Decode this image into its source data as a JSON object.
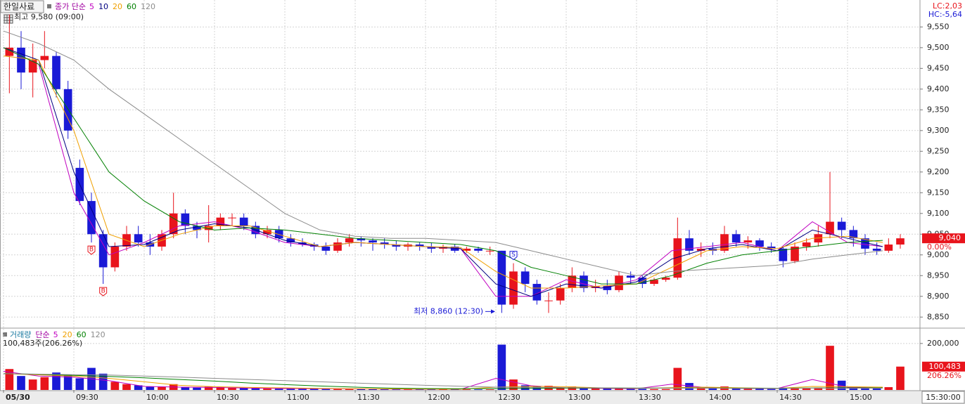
{
  "chart_data": [
    {
      "type": "candlestick",
      "title": "한일사료",
      "legend_label": "종가 단순",
      "x": [
        "09:00",
        "09:05",
        "09:10",
        "09:15",
        "09:20",
        "09:25",
        "09:30",
        "09:35",
        "09:40",
        "09:45",
        "09:50",
        "09:55",
        "10:00",
        "10:05",
        "10:10",
        "10:15",
        "10:20",
        "10:25",
        "10:30",
        "10:35",
        "10:40",
        "10:45",
        "10:50",
        "10:55",
        "11:00",
        "11:05",
        "11:10",
        "11:15",
        "11:20",
        "11:25",
        "11:30",
        "11:35",
        "11:40",
        "11:45",
        "11:50",
        "11:55",
        "12:00",
        "12:05",
        "12:10",
        "12:15",
        "12:20",
        "12:25",
        "12:30",
        "12:35",
        "12:40",
        "12:45",
        "12:50",
        "12:55",
        "13:00",
        "13:05",
        "13:10",
        "13:15",
        "13:20",
        "13:25",
        "13:30",
        "13:35",
        "13:40",
        "13:45",
        "13:50",
        "13:55",
        "14:00",
        "14:05",
        "14:10",
        "14:15",
        "14:20",
        "14:25",
        "14:30",
        "14:35",
        "14:40",
        "14:45",
        "14:50",
        "14:55",
        "15:00",
        "15:05",
        "15:10",
        "15:15",
        "15:20"
      ],
      "open": [
        9480,
        9500,
        9440,
        9470,
        9480,
        9400,
        9210,
        9130,
        9050,
        8970,
        9020,
        9050,
        9030,
        9020,
        9050,
        9100,
        9070,
        9060,
        9070,
        9090,
        9090,
        9070,
        9050,
        9060,
        9040,
        9030,
        9025,
        9020,
        9010,
        9030,
        9040,
        9035,
        9030,
        9025,
        9020,
        9025,
        9020,
        9015,
        9020,
        9010,
        9015,
        9010,
        9010,
        8880,
        8960,
        8930,
        8890,
        8890,
        8920,
        8950,
        8920,
        8925,
        8915,
        8950,
        8945,
        8930,
        8940,
        8945,
        9040,
        9010,
        9015,
        9010,
        9050,
        9030,
        9035,
        9020,
        9015,
        8985,
        9020,
        9030,
        9050,
        9080,
        9060,
        9040,
        9015,
        9010,
        9025
      ],
      "high": [
        9580,
        9540,
        9510,
        9540,
        9490,
        9420,
        9230,
        9150,
        9060,
        9030,
        9070,
        9070,
        9050,
        9060,
        9150,
        9110,
        9080,
        9120,
        9100,
        9100,
        9100,
        9080,
        9070,
        9070,
        9050,
        9040,
        9030,
        9030,
        9040,
        9050,
        9045,
        9040,
        9040,
        9035,
        9030,
        9030,
        9030,
        9025,
        9025,
        9020,
        9020,
        9020,
        9010,
        8980,
        8970,
        8940,
        8910,
        8930,
        8970,
        8960,
        8940,
        8940,
        8960,
        8960,
        8950,
        8945,
        8950,
        9090,
        9060,
        9030,
        9030,
        9070,
        9060,
        9045,
        9040,
        9030,
        9020,
        9030,
        9040,
        9070,
        9200,
        9090,
        9070,
        9050,
        9030,
        9040,
        9050
      ],
      "low": [
        9390,
        9400,
        9380,
        9450,
        9380,
        9280,
        9120,
        9030,
        8930,
        8960,
        9010,
        9020,
        9000,
        9010,
        9040,
        9050,
        9040,
        9030,
        9060,
        9070,
        9060,
        9040,
        9040,
        9030,
        9020,
        9020,
        9010,
        9000,
        9005,
        9020,
        9020,
        9010,
        9015,
        9010,
        9010,
        9010,
        9005,
        9005,
        9005,
        9005,
        9005,
        9000,
        8860,
        8870,
        8910,
        8880,
        8860,
        8880,
        8910,
        8910,
        8910,
        8905,
        8910,
        8930,
        8920,
        8925,
        8935,
        8940,
        9000,
        8995,
        9000,
        9005,
        9020,
        9015,
        9010,
        9005,
        8970,
        8980,
        9010,
        9020,
        9040,
        9040,
        9020,
        9000,
        9000,
        9005,
        9015
      ],
      "close": [
        9500,
        9440,
        9470,
        9480,
        9400,
        9300,
        9130,
        9050,
        8970,
        9020,
        9050,
        9030,
        9020,
        9050,
        9100,
        9070,
        9060,
        9070,
        9090,
        9090,
        9070,
        9050,
        9060,
        9040,
        9030,
        9025,
        9020,
        9010,
        9030,
        9040,
        9035,
        9030,
        9025,
        9020,
        9025,
        9020,
        9015,
        9020,
        9010,
        9015,
        9010,
        9010,
        8880,
        8960,
        8930,
        8890,
        8890,
        8920,
        8950,
        8920,
        8925,
        8915,
        8950,
        8945,
        8930,
        8940,
        8945,
        9040,
        9010,
        9015,
        9010,
        9050,
        9030,
        9035,
        9020,
        9015,
        8985,
        9020,
        9030,
        9050,
        9080,
        9060,
        9040,
        9015,
        9010,
        9025,
        9040
      ],
      "up_color": "#e8141c",
      "down_color": "#1a1ad6",
      "xlim": [
        "09:00",
        "15:30"
      ],
      "xticks": [
        {
          "value": "09:00",
          "label": "05/30"
        },
        "09:30",
        "10:00",
        "10:30",
        "11:00",
        "11:30",
        "12:00",
        "12:30",
        "13:00",
        "13:30",
        "14:00",
        "14:30",
        "15:00"
      ],
      "ylim": [
        8825,
        9615
      ],
      "yticks": [
        {
          "value": 8850,
          "label": "8,850"
        },
        {
          "value": 8900,
          "label": "8,900"
        },
        {
          "value": 8950,
          "label": "8,950"
        },
        {
          "value": 9000,
          "label": "9,000"
        },
        {
          "value": 9050,
          "label": "9,050"
        },
        {
          "value": 9100,
          "label": "9,100"
        },
        {
          "value": 9150,
          "label": "9,150"
        },
        {
          "value": 9200,
          "label": "9,200"
        },
        {
          "value": 9250,
          "label": "9,250"
        },
        {
          "value": 9300,
          "label": "9,300"
        },
        {
          "value": 9350,
          "label": "9,350"
        },
        {
          "value": 9400,
          "label": "9,400"
        },
        {
          "value": 9450,
          "label": "9,450"
        },
        {
          "value": 9500,
          "label": "9,500"
        },
        {
          "value": 9550,
          "label": "9,550"
        }
      ],
      "grid": true,
      "moving_averages": {
        "x": [
          "09:00",
          "09:15",
          "09:30",
          "09:45",
          "10:00",
          "10:15",
          "10:30",
          "10:45",
          "11:00",
          "11:15",
          "11:30",
          "11:45",
          "12:00",
          "12:15",
          "12:30",
          "12:45",
          "13:00",
          "13:15",
          "13:30",
          "13:45",
          "14:00",
          "14:15",
          "14:30",
          "14:45",
          "15:00",
          "15:15"
        ],
        "series": [
          {
            "name": "5",
            "color": "#c000c0",
            "values": [
              9500,
              9460,
              9150,
              9000,
              9030,
              9070,
              9080,
              9060,
              9030,
              9020,
              9030,
              9025,
              9020,
              9015,
              8900,
              8900,
              8940,
              8920,
              8940,
              9010,
              9020,
              9030,
              9010,
              9080,
              9030,
              9020
            ]
          },
          {
            "name": "10",
            "color": "#000080",
            "values": [
              9500,
              9470,
              9200,
              9020,
              9025,
              9060,
              9075,
              9065,
              9035,
              9020,
              9030,
              9025,
              9020,
              9015,
              8930,
              8900,
              8930,
              8920,
              8935,
              8990,
              9015,
              9025,
              9010,
              9060,
              9040,
              9020
            ]
          },
          {
            "name": "20",
            "color": "#f0a000",
            "values": [
              9480,
              9470,
              9300,
              9050,
              9020,
              9050,
              9070,
              9070,
              9045,
              9020,
              9030,
              9025,
              9020,
              9018,
              8960,
              8920,
              8920,
              8925,
              8930,
              8970,
              9010,
              9020,
              9015,
              9040,
              9045,
              9030
            ]
          },
          {
            "name": "60",
            "color": "#008000",
            "values": [
              9500,
              9460,
              9330,
              9200,
              9130,
              9080,
              9060,
              9065,
              9060,
              9050,
              9040,
              9035,
              9030,
              9025,
              9010,
              8970,
              8950,
              8930,
              8930,
              8950,
              8980,
              9000,
              9010,
              9020,
              9030,
              9035
            ]
          },
          {
            "name": "120",
            "color": "#8c8c8c",
            "values": [
              9540,
              9510,
              9470,
              9400,
              9340,
              9280,
              9220,
              9160,
              9100,
              9060,
              9045,
              9040,
              9040,
              9035,
              9030,
              9010,
              8990,
              8970,
              8950,
              8960,
              8965,
              8970,
              8975,
              8990,
              9000,
              9010
            ]
          }
        ]
      },
      "signals": [
        {
          "x": "09:35",
          "label": "B",
          "position": "below",
          "color": "#e8141c"
        },
        {
          "x": "09:40",
          "label": "B",
          "position": "below",
          "color": "#e8141c"
        },
        {
          "x": "12:35",
          "label": "S",
          "position": "above",
          "color": "#1a1ad6"
        }
      ],
      "high_annotation": {
        "x": "09:00",
        "value": 9580,
        "label": "최고 9,580 (09:00)"
      },
      "low_annotation": {
        "x": "12:30",
        "value": 8860,
        "label": "최저 8,860 (12:30)"
      },
      "lc_label": "LC:2,03",
      "hc_label": "HC:-5,64",
      "current_price": {
        "value": 9040,
        "label": "9,040"
      },
      "change_label": "0.00%",
      "time_label": "15:30:00"
    },
    {
      "type": "bar",
      "title": "거래량",
      "legend_label": "단순",
      "values": [
        90000,
        60000,
        45000,
        55000,
        75000,
        65000,
        50000,
        95000,
        70000,
        35000,
        25000,
        20000,
        15000,
        14000,
        25000,
        12000,
        10000,
        14000,
        12000,
        9000,
        8000,
        9000,
        7000,
        6000,
        6000,
        5000,
        5000,
        4500,
        6000,
        5000,
        4000,
        4000,
        3500,
        3500,
        3000,
        3000,
        3000,
        3000,
        2500,
        2500,
        2500,
        2500,
        195000,
        45000,
        20000,
        15000,
        18000,
        10000,
        15000,
        9000,
        7000,
        6000,
        8000,
        6000,
        5000,
        4000,
        4000,
        95000,
        30000,
        10000,
        8000,
        15000,
        8000,
        6000,
        5000,
        4000,
        10000,
        8000,
        6000,
        10000,
        190000,
        40000,
        15000,
        10000,
        8000,
        12000,
        100483
      ],
      "ylim": [
        0,
        263000
      ],
      "yticks": [
        {
          "value": 200000,
          "label": "200,000"
        }
      ],
      "grid": true,
      "moving_averages": [
        {
          "name": "5",
          "color": "#c000c0",
          "values": [
            80000,
            60000,
            55000,
            40000,
            15000,
            12000,
            11000,
            8000,
            6000,
            5000,
            4500,
            3500,
            3000,
            2800,
            50000,
            18000,
            9000,
            6500,
            5000,
            25000,
            10000,
            6000,
            6000,
            45000,
            12000,
            9000
          ]
        },
        {
          "name": "20",
          "color": "#f0a000",
          "values": [
            70000,
            65000,
            60000,
            50000,
            35000,
            20000,
            14000,
            11000,
            9000,
            7000,
            5500,
            4500,
            3800,
            3200,
            12000,
            15000,
            14000,
            9000,
            7000,
            10000,
            12000,
            9000,
            7000,
            15000,
            14000,
            12000
          ]
        },
        {
          "name": "60",
          "color": "#008000",
          "values": [
            70000,
            67000,
            63000,
            58000,
            52000,
            45000,
            38000,
            30000,
            23000,
            17000,
            12000,
            8000,
            6000,
            5000,
            6000,
            7000,
            8000,
            8500,
            8000,
            8000,
            8500,
            8000,
            7500,
            8500,
            9000,
            9000
          ]
        },
        {
          "name": "120",
          "color": "#8c8c8c",
          "values": [
            70000,
            68000,
            66000,
            64000,
            60000,
            55000,
            50000,
            45000,
            40000,
            35000,
            30000,
            25000,
            20000,
            16000,
            12000,
            11000,
            10000,
            9000,
            8500,
            8000,
            7500,
            7000,
            7000,
            7500,
            7500,
            7500
          ]
        }
      ],
      "current_volume": {
        "value": 100483,
        "label": "100,483"
      },
      "ratio_label": "206.26%",
      "info_label": "100,483주(206.26%)"
    }
  ]
}
